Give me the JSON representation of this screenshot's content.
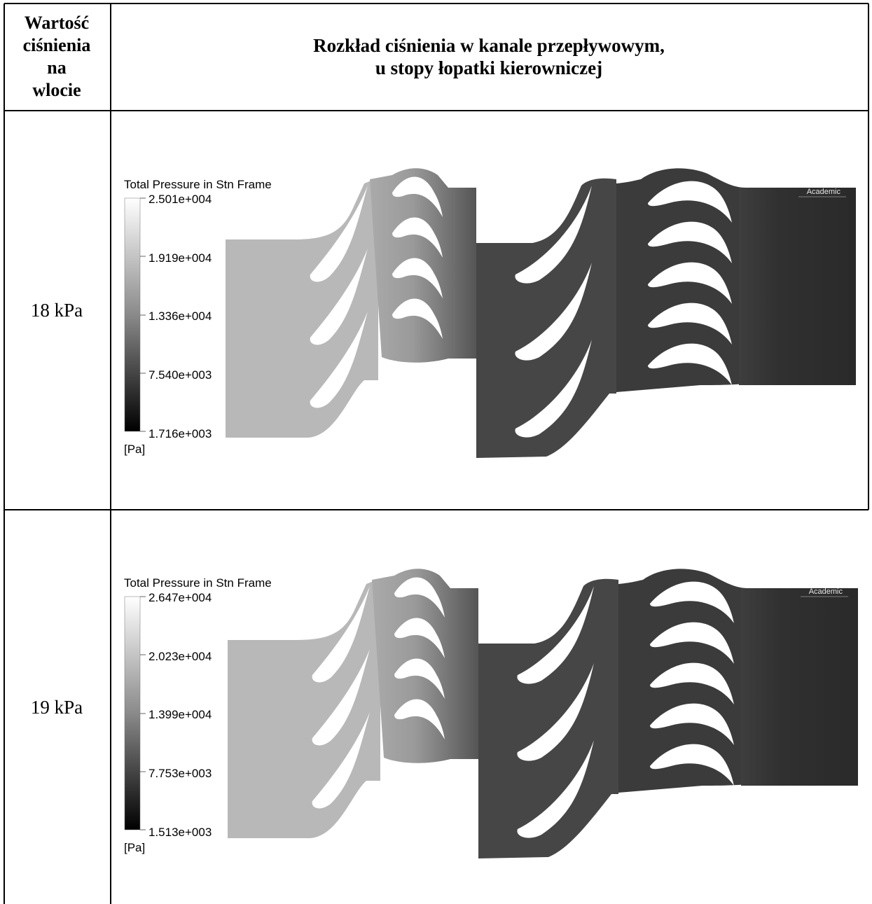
{
  "header": {
    "col1_lines": [
      "Wartość",
      "ciśnienia",
      "na",
      "wlocie"
    ],
    "col2_lines": [
      "Rozkład ciśnienia w kanale przepływowym,",
      "u stopy łopatki kierowniczej"
    ]
  },
  "rows": [
    {
      "label": "18 kPa",
      "legend": {
        "title": "Total Pressure in Stn Frame",
        "ticks": [
          "2.501e+004",
          "1.919e+004",
          "1.336e+004",
          "7.540e+003",
          "1.716e+003"
        ],
        "unit": "[Pa]"
      },
      "watermark": "Academic"
    },
    {
      "label": "19 kPa",
      "legend": {
        "title": "Total Pressure in Stn Frame",
        "ticks": [
          "2.647e+004",
          "2.023e+004",
          "1.399e+004",
          "7.753e+003",
          "1.513e+003"
        ],
        "unit": "[Pa]"
      },
      "watermark": "Academic"
    }
  ],
  "colors": {
    "inlet": "#b9b9b9",
    "stage1_rotor": "#a3a3a3",
    "stage1_outlet": "#555555",
    "stage2": "#474747",
    "outlet": "#2b2b2b"
  }
}
